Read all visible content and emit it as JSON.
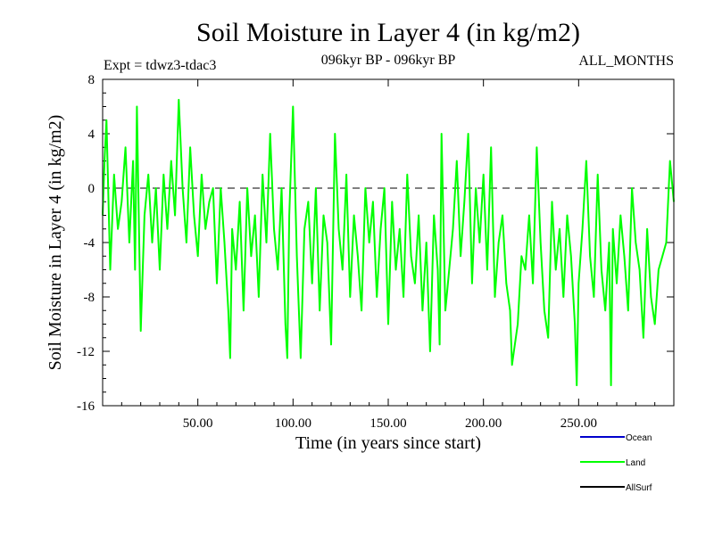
{
  "chart_data": {
    "type": "line",
    "title": "Soil Moisture in Layer 4 (in kg/m2)",
    "subtitle_left": "Expt = tdwz3-tdac3",
    "subtitle_center": "096kyr BP - 096kyr BP",
    "subtitle_right": "ALL_MONTHS",
    "xlabel": "Time (in years since start)",
    "ylabel": "Soil Moisture in Layer 4 (in kg/m2)",
    "xlim": [
      0,
      300
    ],
    "ylim": [
      -16,
      8
    ],
    "x_ticks": [
      50,
      100,
      150,
      200,
      250
    ],
    "x_tick_labels": [
      "50.00",
      "100.00",
      "150.00",
      "200.00",
      "250.00"
    ],
    "y_ticks": [
      -16,
      -12,
      -8,
      -4,
      0,
      4,
      8
    ],
    "y_tick_labels": [
      "-16",
      "-12",
      "-8",
      "-4",
      "0",
      "4",
      "8"
    ],
    "zero_line": 0,
    "grid": false,
    "legend_position": "bottom-right",
    "series": [
      {
        "name": "Ocean",
        "legend_label": "Ocean",
        "color": "#0000cc",
        "x": [],
        "y": []
      },
      {
        "name": "Land",
        "legend_label": "Land",
        "color": "#00ff00",
        "x": [
          0,
          1,
          2,
          4,
          6,
          8,
          10,
          12,
          14,
          16,
          17,
          18,
          20,
          22,
          24,
          26,
          28,
          30,
          32,
          34,
          36,
          38,
          40,
          42,
          44,
          46,
          48,
          50,
          52,
          54,
          56,
          58,
          60,
          62,
          64,
          66,
          67,
          68,
          70,
          72,
          74,
          76,
          78,
          80,
          82,
          84,
          86,
          88,
          90,
          92,
          94,
          96,
          97,
          98,
          100,
          102,
          104,
          106,
          108,
          110,
          112,
          114,
          116,
          118,
          120,
          122,
          124,
          126,
          128,
          130,
          132,
          134,
          136,
          138,
          140,
          142,
          144,
          146,
          148,
          150,
          152,
          154,
          156,
          158,
          160,
          162,
          164,
          166,
          168,
          170,
          172,
          174,
          176,
          177,
          178,
          180,
          182,
          184,
          186,
          188,
          190,
          192,
          194,
          196,
          198,
          200,
          202,
          204,
          206,
          208,
          210,
          212,
          214,
          215,
          216,
          218,
          220,
          222,
          224,
          226,
          228,
          230,
          232,
          234,
          236,
          238,
          240,
          242,
          244,
          246,
          248,
          249,
          250,
          252,
          254,
          256,
          258,
          260,
          262,
          264,
          266,
          267,
          268,
          270,
          272,
          274,
          276,
          278,
          280,
          282,
          284,
          286,
          288,
          290,
          292,
          294,
          296,
          298,
          300
        ],
        "y": [
          -2,
          2,
          5,
          -6,
          1,
          -3,
          -1,
          3,
          -4,
          2,
          -6,
          6,
          -10.5,
          -2,
          1,
          -4,
          0,
          -6,
          1,
          -3,
          2,
          -2,
          6.5,
          0,
          -4,
          3,
          -2,
          -5,
          1,
          -3,
          -1,
          0,
          -7,
          0,
          -4,
          -9,
          -12.5,
          -3,
          -6,
          -1,
          -9,
          0,
          -5,
          -2,
          -8,
          1,
          -4,
          4,
          -3,
          -6,
          0,
          -10,
          -12.5,
          -2,
          6,
          -5,
          -12.5,
          -3,
          -1,
          -7,
          0,
          -9,
          -2,
          -4,
          -11.5,
          4,
          -3,
          -6,
          1,
          -8,
          -2,
          -5,
          -9,
          0,
          -4,
          -1,
          -8,
          -3,
          0,
          -10,
          -1,
          -6,
          -3,
          -8,
          1,
          -5,
          -7,
          -2,
          -9,
          -4,
          -12,
          -2,
          -6,
          -11.5,
          4,
          -9,
          -6,
          -3,
          2,
          -5,
          -1,
          4,
          -7,
          0,
          -4,
          1,
          -6,
          3,
          -8,
          -4,
          -2,
          -7,
          -9,
          -13,
          -12,
          -10,
          -5,
          -6,
          -2,
          -7,
          3,
          -4,
          -9,
          -11,
          -1,
          -6,
          -3,
          -8,
          -2,
          -5,
          -10,
          -14.5,
          -7,
          -3,
          2,
          -5,
          -8,
          1,
          -6,
          -9,
          -4,
          -14.5,
          -3,
          -7,
          -2,
          -5,
          -9,
          0,
          -4,
          -6,
          -11,
          -3,
          -8,
          -10,
          -6,
          -5,
          -4,
          2,
          -1
        ]
      },
      {
        "name": "AllSurf",
        "legend_label": "AllSurf",
        "color": "#000000",
        "x": [],
        "y": []
      }
    ]
  }
}
